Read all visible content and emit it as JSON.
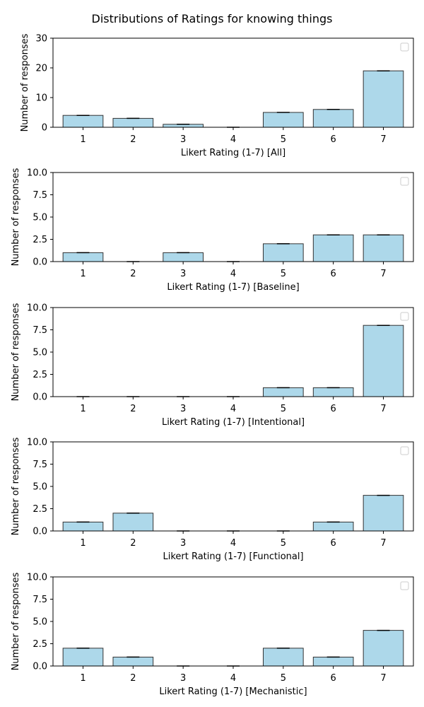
{
  "figure_title": "Distributions of Ratings for knowing things",
  "colors": {
    "bar_fill": "#add8ea",
    "bar_edge": "#333333",
    "error_cap": "#000000",
    "axis": "#000000"
  },
  "chart_data": [
    {
      "type": "bar",
      "categories": [
        "1",
        "2",
        "3",
        "4",
        "5",
        "6",
        "7"
      ],
      "values": [
        4,
        3,
        1,
        0,
        5,
        6,
        19
      ],
      "xlabel": "Likert Rating (1-7) [All]",
      "ylabel": "Number of responses",
      "ylim": [
        0,
        30
      ],
      "yticks": [
        "0",
        "10",
        "20",
        "30"
      ],
      "ytick_values": [
        0,
        10,
        20,
        30
      ],
      "legend": "top-right (empty)",
      "grid": false
    },
    {
      "type": "bar",
      "categories": [
        "1",
        "2",
        "3",
        "4",
        "5",
        "6",
        "7"
      ],
      "values": [
        1,
        0,
        1,
        0,
        2,
        3,
        3
      ],
      "xlabel": "Likert Rating (1-7) [Baseline]",
      "ylabel": "Number of responses",
      "ylim": [
        0,
        10
      ],
      "yticks": [
        "0.0",
        "2.5",
        "5.0",
        "7.5",
        "10.0"
      ],
      "ytick_values": [
        0,
        2.5,
        5,
        7.5,
        10
      ],
      "legend": "top-right (empty)",
      "grid": false
    },
    {
      "type": "bar",
      "categories": [
        "1",
        "2",
        "3",
        "4",
        "5",
        "6",
        "7"
      ],
      "values": [
        0,
        0,
        0,
        0,
        1,
        1,
        8
      ],
      "xlabel": "Likert Rating (1-7) [Intentional]",
      "ylabel": "Number of responses",
      "ylim": [
        0,
        10
      ],
      "yticks": [
        "0.0",
        "2.5",
        "5.0",
        "7.5",
        "10.0"
      ],
      "ytick_values": [
        0,
        2.5,
        5,
        7.5,
        10
      ],
      "legend": "top-right (empty)",
      "grid": false
    },
    {
      "type": "bar",
      "categories": [
        "1",
        "2",
        "3",
        "4",
        "5",
        "6",
        "7"
      ],
      "values": [
        1,
        2,
        0,
        0,
        0,
        1,
        4
      ],
      "xlabel": "Likert Rating (1-7) [Functional]",
      "ylabel": "Number of responses",
      "ylim": [
        0,
        10
      ],
      "yticks": [
        "0.0",
        "2.5",
        "5.0",
        "7.5",
        "10.0"
      ],
      "ytick_values": [
        0,
        2.5,
        5,
        7.5,
        10
      ],
      "legend": "top-right (empty)",
      "grid": false
    },
    {
      "type": "bar",
      "categories": [
        "1",
        "2",
        "3",
        "4",
        "5",
        "6",
        "7"
      ],
      "values": [
        2,
        1,
        0,
        0,
        2,
        1,
        4
      ],
      "xlabel": "Likert Rating (1-7) [Mechanistic]",
      "ylabel": "Number of responses",
      "ylim": [
        0,
        10
      ],
      "yticks": [
        "0.0",
        "2.5",
        "5.0",
        "7.5",
        "10.0"
      ],
      "ytick_values": [
        0,
        2.5,
        5,
        7.5,
        10
      ],
      "legend": "top-right (empty)",
      "grid": false
    }
  ]
}
